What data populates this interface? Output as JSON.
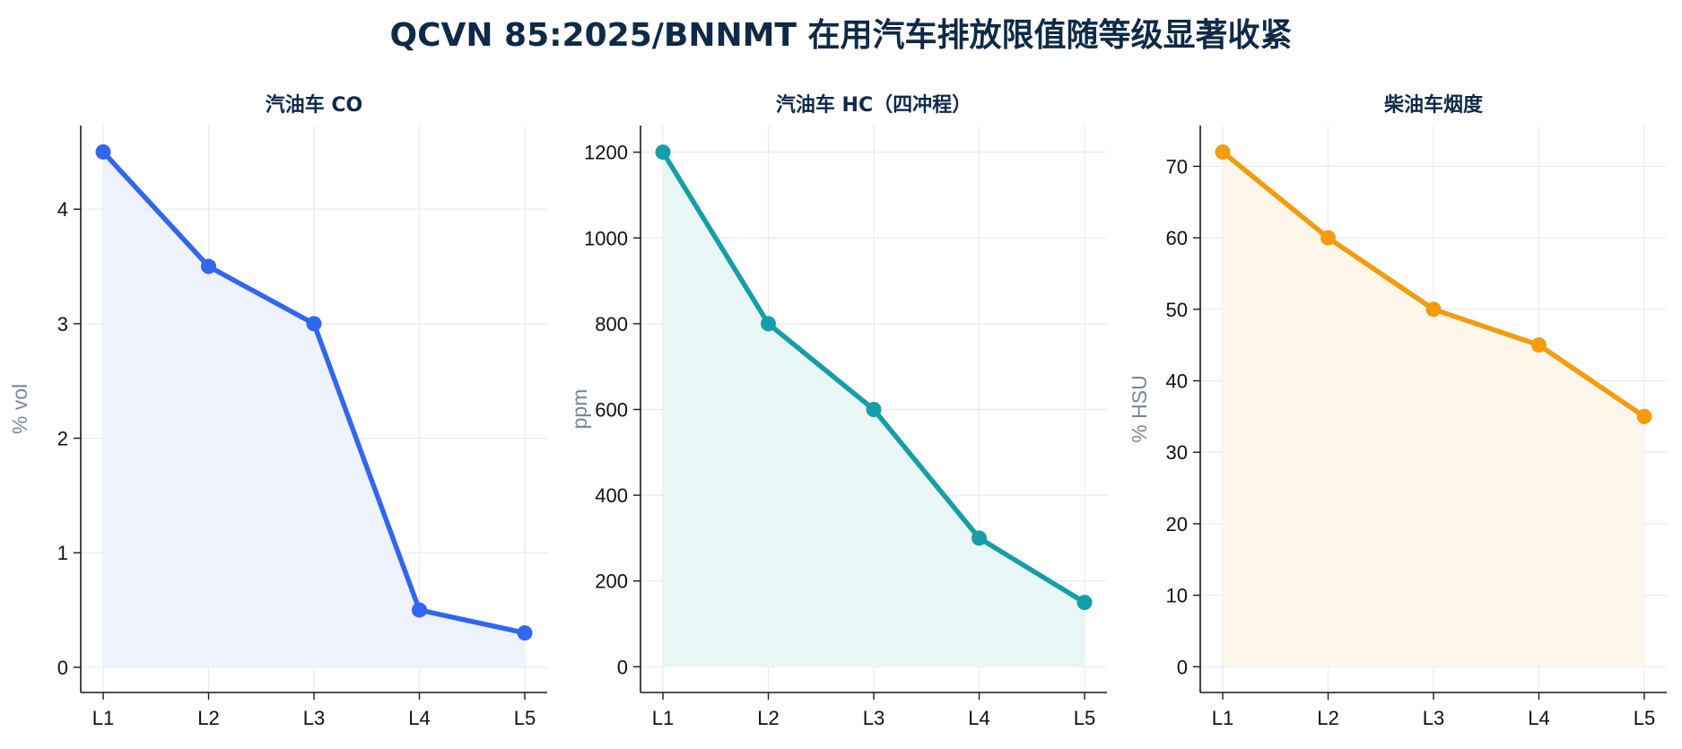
{
  "title": "QCVN 85:2025/BNNMT 在用汽车排放限值随等级显著收紧",
  "chart_data": [
    {
      "type": "area",
      "title": "汽油车 CO",
      "xlabel": "",
      "ylabel": "% vol",
      "categories": [
        "L1",
        "L2",
        "L3",
        "L4",
        "L5"
      ],
      "values": [
        4.5,
        3.5,
        3.0,
        0.5,
        0.3
      ],
      "ylim": [
        -0.22,
        4.73
      ],
      "yticks": [
        0,
        1,
        2,
        3,
        4
      ],
      "grid": true,
      "color": "#3066f0",
      "fill_color": "#eef2fd"
    },
    {
      "type": "area",
      "title": "汽油车 HC（四冲程）",
      "xlabel": "",
      "ylabel": "ppm",
      "categories": [
        "L1",
        "L2",
        "L3",
        "L4",
        "L5"
      ],
      "values": [
        1200,
        800,
        600,
        300,
        150
      ],
      "ylim": [
        -60,
        1262
      ],
      "yticks": [
        0,
        200,
        400,
        600,
        800,
        1000,
        1200
      ],
      "grid": true,
      "color": "#169ea8",
      "fill_color": "#e9f6f6"
    },
    {
      "type": "area",
      "title": "柴油车烟度",
      "xlabel": "",
      "ylabel": "% HSU",
      "categories": [
        "L1",
        "L2",
        "L3",
        "L4",
        "L5"
      ],
      "values": [
        72,
        60,
        50,
        45,
        35
      ],
      "ylim": [
        -3.6,
        75.7
      ],
      "yticks": [
        0,
        10,
        20,
        30,
        40,
        50,
        60,
        70
      ],
      "grid": true,
      "color": "#f29c0e",
      "fill_color": "#fdf6ea"
    }
  ]
}
